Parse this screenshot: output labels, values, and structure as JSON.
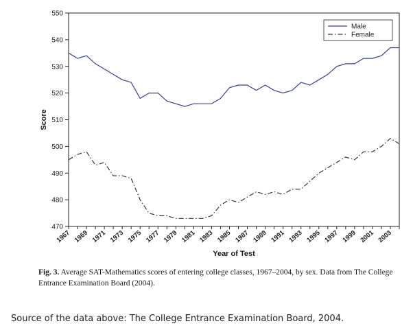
{
  "chart_data": {
    "type": "line",
    "xlabel": "Year of Test",
    "ylabel": "Score",
    "ylim": [
      470,
      550
    ],
    "yticks": [
      470,
      480,
      490,
      500,
      510,
      520,
      530,
      540,
      550
    ],
    "xlim": [
      1967,
      2004
    ],
    "xticks": [
      1967,
      1969,
      1971,
      1973,
      1975,
      1977,
      1979,
      1981,
      1983,
      1985,
      1987,
      1989,
      1991,
      1993,
      1995,
      1997,
      1999,
      2001,
      2003
    ],
    "legend_position": "top-right",
    "grid": false,
    "x": [
      1967,
      1968,
      1969,
      1970,
      1971,
      1972,
      1973,
      1974,
      1975,
      1976,
      1977,
      1978,
      1979,
      1980,
      1981,
      1982,
      1983,
      1984,
      1985,
      1986,
      1987,
      1988,
      1989,
      1990,
      1991,
      1992,
      1993,
      1994,
      1995,
      1996,
      1997,
      1998,
      1999,
      2000,
      2001,
      2002,
      2003,
      2004
    ],
    "series": [
      {
        "name": "Male",
        "style": "solid",
        "values": [
          535,
          533,
          534,
          531,
          529,
          527,
          525,
          524,
          518,
          520,
          520,
          517,
          516,
          515,
          516,
          516,
          516,
          518,
          522,
          523,
          523,
          521,
          523,
          521,
          520,
          521,
          524,
          523,
          525,
          527,
          530,
          531,
          531,
          533,
          533,
          534,
          537,
          537
        ]
      },
      {
        "name": "Female",
        "style": "dashdot",
        "values": [
          495,
          497,
          498,
          493,
          494,
          489,
          489,
          488,
          480,
          475,
          474,
          474,
          473,
          473,
          473,
          473,
          474,
          478,
          480,
          479,
          481,
          483,
          482,
          483,
          482,
          484,
          484,
          487,
          490,
          492,
          494,
          496,
          495,
          498,
          498,
          500,
          503,
          501
        ]
      }
    ]
  },
  "caption": {
    "label": "Fig. 3.",
    "text": "Average SAT-Mathematics scores of entering college classes, 1967–2004, by sex. Data from The College Entrance Examination Board (2004)."
  },
  "source_note": "Source of the data above: The College Entrance Examination Board, 2004."
}
